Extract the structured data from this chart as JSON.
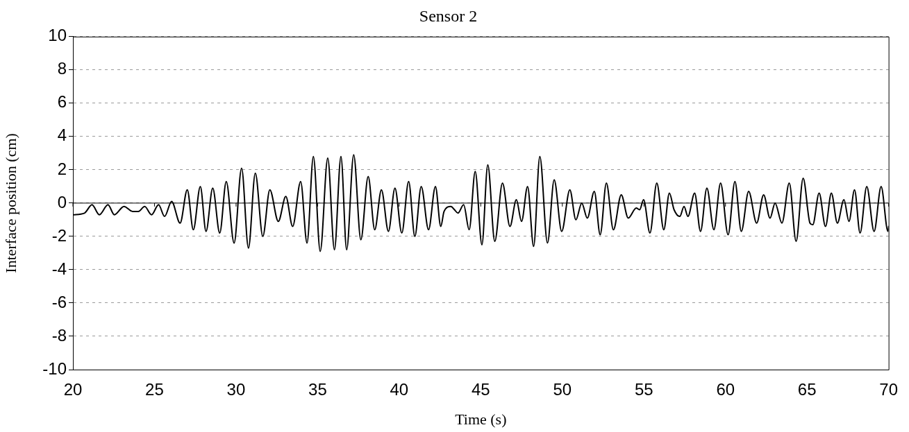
{
  "chart_data": {
    "type": "line",
    "title": "Sensor 2",
    "xlabel": "Time (s)",
    "ylabel": "Interface position (cm)",
    "xlim": [
      20,
      70
    ],
    "xticks": [
      20,
      25,
      30,
      35,
      40,
      45,
      50,
      55,
      60,
      65,
      70
    ],
    "ylim": [
      -10,
      10
    ],
    "yticks": [
      -10,
      -8,
      -6,
      -4,
      -2,
      0,
      2,
      4,
      6,
      8,
      10
    ],
    "grid": "y",
    "legend": false,
    "marker": "none",
    "line_style": "solid",
    "ref_lines": [
      {
        "axis": "y",
        "value": 0,
        "color": "#000000"
      }
    ],
    "series": [
      {
        "color": "#000000",
        "x": [
          20,
          20.71,
          21.17,
          21.62,
          22.15,
          22.54,
          23.13,
          23.66,
          24.01,
          24.4,
          24.82,
          25.25,
          25.62,
          26.05,
          26.57,
          27.01,
          27.38,
          27.81,
          28.16,
          28.57,
          29,
          29.4,
          29.88,
          30.34,
          30.76,
          31.18,
          31.64,
          32.07,
          32.59,
          33.05,
          33.47,
          33.96,
          34.35,
          34.74,
          35.16,
          35.62,
          36.03,
          36.43,
          36.78,
          37.21,
          37.65,
          38.1,
          38.5,
          38.91,
          39.34,
          39.74,
          40.16,
          40.58,
          40.96,
          41.35,
          41.8,
          42.22,
          42.55,
          42.75,
          43.17,
          43.39,
          43.6,
          43.95,
          44.29,
          44.66,
          45.07,
          45.43,
          45.86,
          46.33,
          46.79,
          47.18,
          47.5,
          47.87,
          48.24,
          48.62,
          49.09,
          49.5,
          49.96,
          50.46,
          50.83,
          51.19,
          51.53,
          51.96,
          52.32,
          52.7,
          53.13,
          53.61,
          54.04,
          54.53,
          54.74,
          54.98,
          55.37,
          55.79,
          56.22,
          56.56,
          56.85,
          57.2,
          57.46,
          57.7,
          58.11,
          58.47,
          58.86,
          59.29,
          59.7,
          60.16,
          60.58,
          60.97,
          61.42,
          61.91,
          62.34,
          62.73,
          63.04,
          63.46,
          63.91,
          64.33,
          64.76,
          65.18,
          65.35,
          65.74,
          66.13,
          66.49,
          66.86,
          67.26,
          67.57,
          67.91,
          68.25,
          68.66,
          69.11,
          69.54,
          69.96,
          70
        ],
        "values": [
          -0.7,
          -0.6,
          -0.1,
          -0.7,
          -0.1,
          -0.7,
          -0.2,
          -0.5,
          -0.5,
          -0.2,
          -0.7,
          -0.1,
          -0.8,
          0.1,
          -1.2,
          0.8,
          -1.6,
          1,
          -1.7,
          0.9,
          -1.8,
          1.3,
          -2.4,
          2.1,
          -2.7,
          1.8,
          -2,
          0.8,
          -1.1,
          0.4,
          -1.4,
          1.3,
          -2.4,
          2.8,
          -2.9,
          2.7,
          -2.8,
          2.8,
          -2.8,
          2.9,
          -2.2,
          1.6,
          -1.6,
          0.8,
          -1.7,
          0.9,
          -1.8,
          1.3,
          -2,
          1,
          -1.6,
          1,
          -1.4,
          -0.5,
          -0.2,
          -0.4,
          -0.6,
          -0.1,
          -1.6,
          1.9,
          -2.5,
          2.3,
          -2.3,
          1.2,
          -1.4,
          0.2,
          -1.1,
          1,
          -2.6,
          2.8,
          -2.4,
          1.4,
          -1.7,
          0.8,
          -1,
          0,
          -0.9,
          0.7,
          -1.9,
          1.2,
          -1.6,
          0.5,
          -0.9,
          -0.3,
          -0.4,
          0.2,
          -1.8,
          1.2,
          -1.6,
          0.6,
          -0.4,
          -0.8,
          -0.2,
          -0.8,
          0.6,
          -1.7,
          0.9,
          -1.6,
          1.2,
          -1.9,
          1.3,
          -1.7,
          0.7,
          -1.2,
          0.5,
          -0.9,
          0,
          -1.2,
          1.2,
          -2.3,
          1.5,
          -1.2,
          -1.3,
          0.6,
          -1.4,
          0.6,
          -1.2,
          0.2,
          -1.1,
          0.8,
          -1.8,
          1,
          -1.7,
          1,
          -1.7,
          -1.4
        ]
      }
    ]
  }
}
